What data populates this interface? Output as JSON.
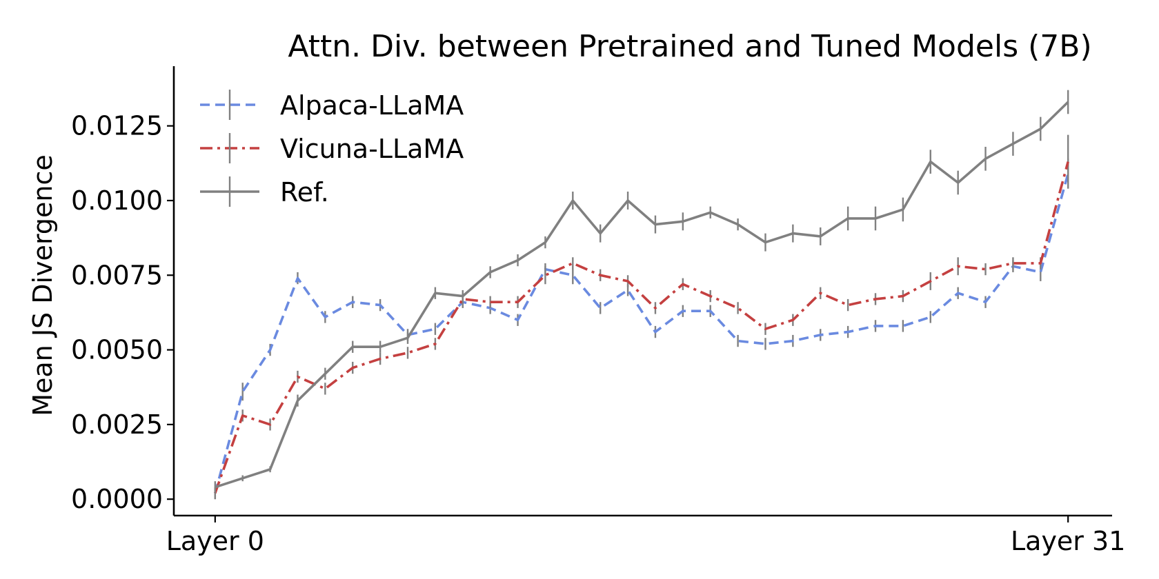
{
  "chart_data": {
    "type": "line",
    "title": "Attn. Div. between Pretrained and Tuned Models (7B)",
    "xlabel": "",
    "ylabel": "Mean JS Divergence",
    "x": [
      0,
      1,
      2,
      3,
      4,
      5,
      6,
      7,
      8,
      9,
      10,
      11,
      12,
      13,
      14,
      15,
      16,
      17,
      18,
      19,
      20,
      21,
      22,
      23,
      24,
      25,
      26,
      27,
      28,
      29,
      30,
      31
    ],
    "xticks": [
      {
        "value": 0,
        "label": "Layer 0"
      },
      {
        "value": 31,
        "label": "Layer 31"
      }
    ],
    "xlim": [
      -1.5,
      32.6
    ],
    "ylim": [
      -0.00055,
      0.0145
    ],
    "yticks": [
      {
        "value": 0.0,
        "label": "0.0000"
      },
      {
        "value": 0.0025,
        "label": "0.0025"
      },
      {
        "value": 0.005,
        "label": "0.0050"
      },
      {
        "value": 0.0075,
        "label": "0.0075"
      },
      {
        "value": 0.01,
        "label": "0.0100"
      },
      {
        "value": 0.0125,
        "label": "0.0125"
      }
    ],
    "grid": false,
    "legend": "top-left",
    "series": [
      {
        "name": "Alpaca-LLaMA",
        "color": "#6a8ae0",
        "style": "dashed",
        "values": [
          0.0002,
          0.0036,
          0.005,
          0.0074,
          0.0061,
          0.0066,
          0.0065,
          0.0055,
          0.0057,
          0.0066,
          0.0064,
          0.006,
          0.0077,
          0.0075,
          0.0064,
          0.007,
          0.0056,
          0.0063,
          0.0063,
          0.0053,
          0.0052,
          0.0053,
          0.0055,
          0.0056,
          0.0058,
          0.0058,
          0.0061,
          0.0069,
          0.0066,
          0.0078,
          0.0076,
          0.0109
        ],
        "errors": [
          0.0002,
          0.0003,
          0.0002,
          0.0002,
          0.0002,
          0.0002,
          0.0002,
          0.0002,
          0.0002,
          0.0002,
          0.0002,
          0.0002,
          0.0002,
          0.0003,
          0.0002,
          0.0002,
          0.0002,
          0.0002,
          0.0002,
          0.0002,
          0.0002,
          0.0002,
          0.0002,
          0.0002,
          0.0002,
          0.0002,
          0.0002,
          0.0002,
          0.0002,
          0.0002,
          0.0003,
          0.0005
        ]
      },
      {
        "name": "Vicuna-LLaMA",
        "color": "#c44040",
        "style": "dashdot",
        "values": [
          0.0002,
          0.0028,
          0.0025,
          0.0041,
          0.0037,
          0.0044,
          0.0047,
          0.0049,
          0.0052,
          0.0067,
          0.0066,
          0.0066,
          0.0075,
          0.0079,
          0.0075,
          0.0073,
          0.0064,
          0.0072,
          0.0068,
          0.0064,
          0.0057,
          0.006,
          0.0069,
          0.0065,
          0.0067,
          0.0068,
          0.0073,
          0.0078,
          0.0077,
          0.0079,
          0.0079,
          0.0113
        ],
        "errors": [
          0.0002,
          0.0002,
          0.0002,
          0.0002,
          0.0002,
          0.0002,
          0.0002,
          0.0002,
          0.0002,
          0.0002,
          0.0002,
          0.0002,
          0.0003,
          0.0002,
          0.0002,
          0.0002,
          0.0002,
          0.0002,
          0.0002,
          0.0002,
          0.0002,
          0.0002,
          0.0002,
          0.0002,
          0.0002,
          0.0002,
          0.0003,
          0.0003,
          0.0002,
          0.0002,
          0.0002,
          0.0009
        ]
      },
      {
        "name": "Ref.",
        "color": "#808080",
        "style": "solid",
        "values": [
          0.0004,
          0.0007,
          0.001,
          0.0033,
          0.0042,
          0.0051,
          0.0051,
          0.0054,
          0.0069,
          0.0068,
          0.0076,
          0.008,
          0.0086,
          0.01,
          0.0089,
          0.01,
          0.0092,
          0.0093,
          0.0096,
          0.0092,
          0.0086,
          0.0089,
          0.0088,
          0.0094,
          0.0094,
          0.0097,
          0.0113,
          0.0106,
          0.0114,
          0.0119,
          0.0124,
          0.0133
        ],
        "errors": [
          0.0002,
          0.0001,
          0.0001,
          0.0002,
          0.0002,
          0.0002,
          0.0002,
          0.0002,
          0.0002,
          0.0002,
          0.0002,
          0.0002,
          0.0002,
          0.0003,
          0.0003,
          0.0003,
          0.0003,
          0.0003,
          0.0002,
          0.0002,
          0.0003,
          0.0003,
          0.0003,
          0.0004,
          0.0004,
          0.0004,
          0.0004,
          0.0004,
          0.0004,
          0.0004,
          0.0004,
          0.0004
        ]
      }
    ]
  }
}
